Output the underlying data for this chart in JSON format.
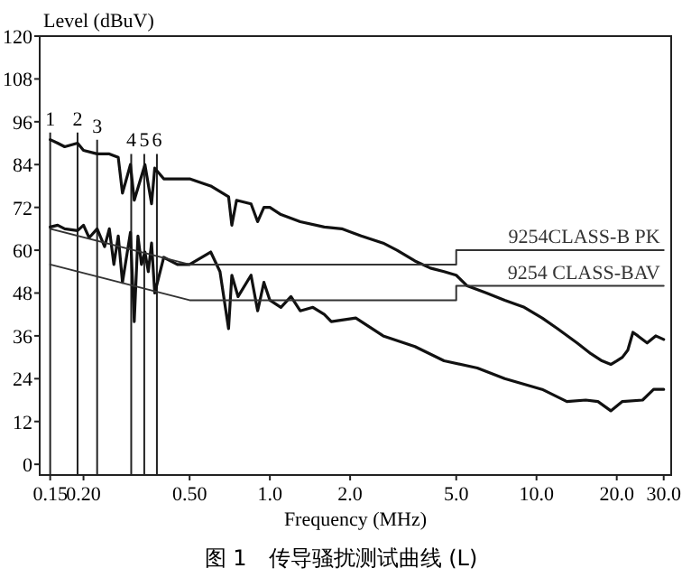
{
  "chart_data": {
    "type": "line",
    "title": "图 1　传导骚扰测试曲线 (L)",
    "xlabel": "Frequency (MHz)",
    "ylabel": "Level (dBuV)",
    "log": "x",
    "grid": false,
    "legend": false,
    "marker": "none",
    "line_style": "solid",
    "xlim": [
      0.137,
      32
    ],
    "xticks": [
      {
        "value": 0.15,
        "label": "0.15"
      },
      {
        "value": 0.2,
        "label": "0.20"
      },
      {
        "value": 0.5,
        "label": "0.50"
      },
      {
        "value": 1,
        "label": "1.0"
      },
      {
        "value": 2,
        "label": "2.0"
      },
      {
        "value": 5,
        "label": "5.0"
      },
      {
        "value": 10,
        "label": "10.0"
      },
      {
        "value": 20,
        "label": "20.0"
      },
      {
        "value": 30,
        "label": "30.0"
      }
    ],
    "ylim": [
      -3,
      120
    ],
    "yticks": [
      0,
      12,
      24,
      36,
      48,
      60,
      72,
      84,
      96,
      108,
      120
    ],
    "series": [
      {
        "color": "#111111",
        "x": [
          0.15,
          0.16,
          0.17,
          0.19,
          0.2,
          0.225,
          0.25,
          0.27,
          0.28,
          0.3,
          0.31,
          0.34,
          0.36,
          0.37,
          0.4,
          0.5,
          0.6,
          0.7,
          0.72,
          0.75,
          0.85,
          0.9,
          0.95,
          1.0,
          1.1,
          1.3,
          1.6,
          1.86,
          2.2,
          2.66,
          3.0,
          3.5,
          4.0,
          4.5,
          5.0,
          5.5,
          6.5,
          7.6,
          9.0,
          10.5,
          12.0,
          14.2,
          16.0,
          17.6,
          19,
          20,
          21,
          22,
          23,
          24,
          26,
          28,
          30
        ],
        "values": [
          91,
          90,
          89,
          90,
          88,
          87,
          87,
          86,
          76,
          84,
          74,
          84,
          73,
          83,
          80,
          80,
          78,
          75,
          67,
          74,
          73,
          68,
          72,
          72,
          70,
          68,
          66.5,
          66,
          64,
          62,
          60,
          57,
          55,
          54,
          53,
          50,
          48,
          46,
          44,
          41,
          38,
          34,
          31,
          29,
          28,
          29,
          30,
          32,
          37,
          36,
          34,
          36,
          35
        ]
      },
      {
        "color": "#111111",
        "x": [
          0.15,
          0.16,
          0.17,
          0.19,
          0.2,
          0.21,
          0.225,
          0.24,
          0.25,
          0.26,
          0.27,
          0.28,
          0.3,
          0.31,
          0.32,
          0.33,
          0.34,
          0.35,
          0.36,
          0.37,
          0.4,
          0.45,
          0.5,
          0.6,
          0.65,
          0.7,
          0.72,
          0.76,
          0.85,
          0.9,
          0.95,
          1.0,
          1.1,
          1.2,
          1.3,
          1.45,
          1.6,
          1.7,
          2.1,
          2.66,
          3.5,
          4.5,
          6.0,
          7.6,
          10.5,
          13,
          15.3,
          17,
          19,
          21,
          25,
          27.5,
          30
        ],
        "values": [
          66.5,
          67,
          66,
          65.5,
          67,
          63.5,
          66,
          61,
          66,
          56,
          64,
          51,
          65,
          40,
          64,
          56,
          59.5,
          54,
          62,
          48,
          58,
          56,
          56,
          59.5,
          54,
          38,
          53,
          47,
          53,
          43,
          51,
          46,
          44,
          47,
          43,
          44,
          42,
          40,
          41,
          36,
          33,
          29,
          27,
          24,
          21,
          17.6,
          18,
          17.6,
          15,
          17.6,
          18,
          21,
          21
        ]
      },
      {
        "name": "9254CLASS-B PK",
        "color": "#333333",
        "x": [
          0.15,
          0.5,
          5,
          5,
          30
        ],
        "values": [
          66,
          56,
          56,
          60,
          60
        ]
      },
      {
        "name": "9254 CLASS-BAV",
        "color": "#333333",
        "x": [
          0.15,
          0.5,
          5,
          5,
          30
        ],
        "values": [
          56,
          46,
          46,
          50,
          50
        ]
      }
    ],
    "ref_lines": [
      {
        "axis": "x",
        "value": 0.15
      },
      {
        "axis": "x",
        "value": 0.19
      },
      {
        "axis": "x",
        "value": 0.225
      },
      {
        "axis": "x",
        "value": 0.302
      },
      {
        "axis": "x",
        "value": 0.338
      },
      {
        "axis": "x",
        "value": 0.377
      }
    ],
    "annotations": [
      {
        "text": "1",
        "x": 0.15,
        "y": 94
      },
      {
        "text": "2",
        "x": 0.19,
        "y": 94
      },
      {
        "text": "3",
        "x": 0.225,
        "y": 92
      },
      {
        "text": "4",
        "x": 0.302,
        "y": 88
      },
      {
        "text": "5",
        "x": 0.338,
        "y": 88
      },
      {
        "text": "6",
        "x": 0.377,
        "y": 88
      }
    ]
  }
}
